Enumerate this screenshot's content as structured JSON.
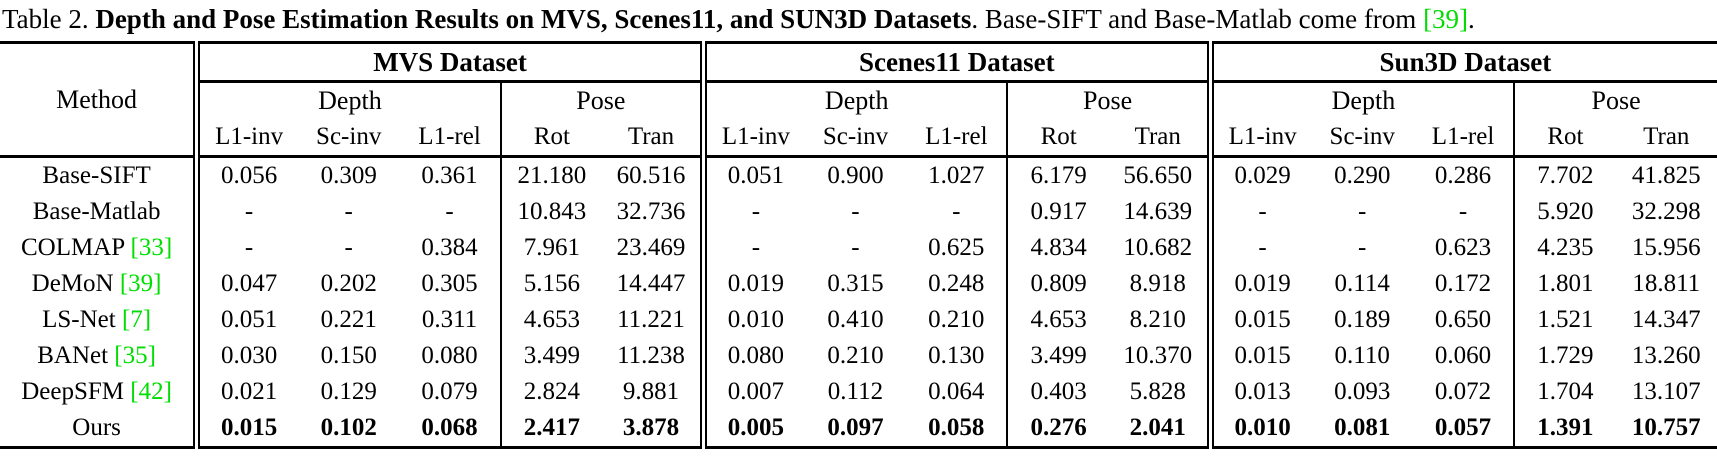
{
  "colors": {
    "citation": "#00dd00"
  },
  "caption": {
    "prefix": "Table 2. ",
    "bold": "Depth and Pose Estimation Results on MVS, Scenes11, and SUN3D Datasets",
    "middle": ". Base-SIFT and Base-Matlab come from ",
    "cite": "[39]",
    "suffix": "."
  },
  "table": {
    "method_header": "Method",
    "datasets": [
      {
        "name": "MVS Dataset"
      },
      {
        "name": "Scenes11 Dataset"
      },
      {
        "name": "Sun3D Dataset"
      }
    ],
    "group_headers": [
      "Depth",
      "Pose"
    ],
    "metric_headers": [
      "L1-inv",
      "Sc-inv",
      "L1-rel",
      "Rot",
      "Tran"
    ],
    "rows": [
      {
        "method": "Base-SIFT",
        "cite": null,
        "bold": false,
        "values": [
          "0.056",
          "0.309",
          "0.361",
          "21.180",
          "60.516",
          "0.051",
          "0.900",
          "1.027",
          "6.179",
          "56.650",
          "0.029",
          "0.290",
          "0.286",
          "7.702",
          "41.825"
        ]
      },
      {
        "method": "Base-Matlab",
        "cite": null,
        "bold": false,
        "values": [
          "-",
          "-",
          "-",
          "10.843",
          "32.736",
          "-",
          "-",
          "-",
          "0.917",
          "14.639",
          "-",
          "-",
          "-",
          "5.920",
          "32.298"
        ]
      },
      {
        "method": "COLMAP",
        "cite": "[33]",
        "bold": false,
        "values": [
          "-",
          "-",
          "0.384",
          "7.961",
          "23.469",
          "-",
          "-",
          "0.625",
          "4.834",
          "10.682",
          "-",
          "-",
          "0.623",
          "4.235",
          "15.956"
        ]
      },
      {
        "method": "DeMoN",
        "cite": "[39]",
        "bold": false,
        "values": [
          "0.047",
          "0.202",
          "0.305",
          "5.156",
          "14.447",
          "0.019",
          "0.315",
          "0.248",
          "0.809",
          "8.918",
          "0.019",
          "0.114",
          "0.172",
          "1.801",
          "18.811"
        ]
      },
      {
        "method": "LS-Net",
        "cite": "[7]",
        "bold": false,
        "values": [
          "0.051",
          "0.221",
          "0.311",
          "4.653",
          "11.221",
          "0.010",
          "0.410",
          "0.210",
          "4.653",
          "8.210",
          "0.015",
          "0.189",
          "0.650",
          "1.521",
          "14.347"
        ]
      },
      {
        "method": "BANet",
        "cite": "[35]",
        "bold": false,
        "values": [
          "0.030",
          "0.150",
          "0.080",
          "3.499",
          "11.238",
          "0.080",
          "0.210",
          "0.130",
          "3.499",
          "10.370",
          "0.015",
          "0.110",
          "0.060",
          "1.729",
          "13.260"
        ]
      },
      {
        "method": "DeepSFM",
        "cite": "[42]",
        "bold": false,
        "values": [
          "0.021",
          "0.129",
          "0.079",
          "2.824",
          "9.881",
          "0.007",
          "0.112",
          "0.064",
          "0.403",
          "5.828",
          "0.013",
          "0.093",
          "0.072",
          "1.704",
          "13.107"
        ]
      },
      {
        "method": "Ours",
        "cite": null,
        "bold": true,
        "values": [
          "0.015",
          "0.102",
          "0.068",
          "2.417",
          "3.878",
          "0.005",
          "0.097",
          "0.058",
          "0.276",
          "2.041",
          "0.010",
          "0.081",
          "0.057",
          "1.391",
          "10.757"
        ]
      }
    ]
  }
}
